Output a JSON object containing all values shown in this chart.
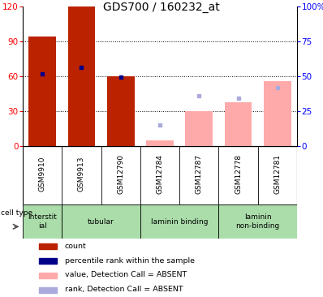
{
  "title": "GDS700 / 160232_at",
  "samples": [
    "GSM9910",
    "GSM9913",
    "GSM12790",
    "GSM12784",
    "GSM12787",
    "GSM12778",
    "GSM12781"
  ],
  "left_ylim": [
    0,
    120
  ],
  "right_ylim": [
    0,
    100
  ],
  "left_yticks": [
    0,
    30,
    60,
    90,
    120
  ],
  "right_yticks": [
    0,
    25,
    50,
    75,
    100
  ],
  "right_yticklabels": [
    "0",
    "25",
    "50",
    "75",
    "100%"
  ],
  "red_bars": [
    94,
    120,
    60,
    null,
    null,
    null,
    null
  ],
  "blue_markers": [
    62,
    68,
    59,
    null,
    null,
    null,
    null
  ],
  "pink_bars": [
    null,
    null,
    null,
    5,
    30,
    38,
    56
  ],
  "lavender_markers": [
    null,
    null,
    null,
    18,
    43,
    41,
    50
  ],
  "cell_types": [
    {
      "label": "interstit\nial",
      "span": [
        0,
        1
      ]
    },
    {
      "label": "tubular",
      "span": [
        1,
        3
      ]
    },
    {
      "label": "laminin binding",
      "span": [
        3,
        5
      ]
    },
    {
      "label": "laminin\nnon-binding",
      "span": [
        5,
        7
      ]
    }
  ],
  "cell_type_label": "cell type",
  "bar_width": 0.7,
  "red_color": "#BB2200",
  "pink_color": "#FFAAAA",
  "blue_color": "#000088",
  "lavender_color": "#AAAADD",
  "gray_bg": "#CCCCCC",
  "green_bg": "#AADDAA",
  "legend": [
    {
      "color": "#BB2200",
      "label": "count"
    },
    {
      "color": "#000088",
      "label": "percentile rank within the sample"
    },
    {
      "color": "#FFAAAA",
      "label": "value, Detection Call = ABSENT"
    },
    {
      "color": "#AAAADD",
      "label": "rank, Detection Call = ABSENT"
    }
  ]
}
